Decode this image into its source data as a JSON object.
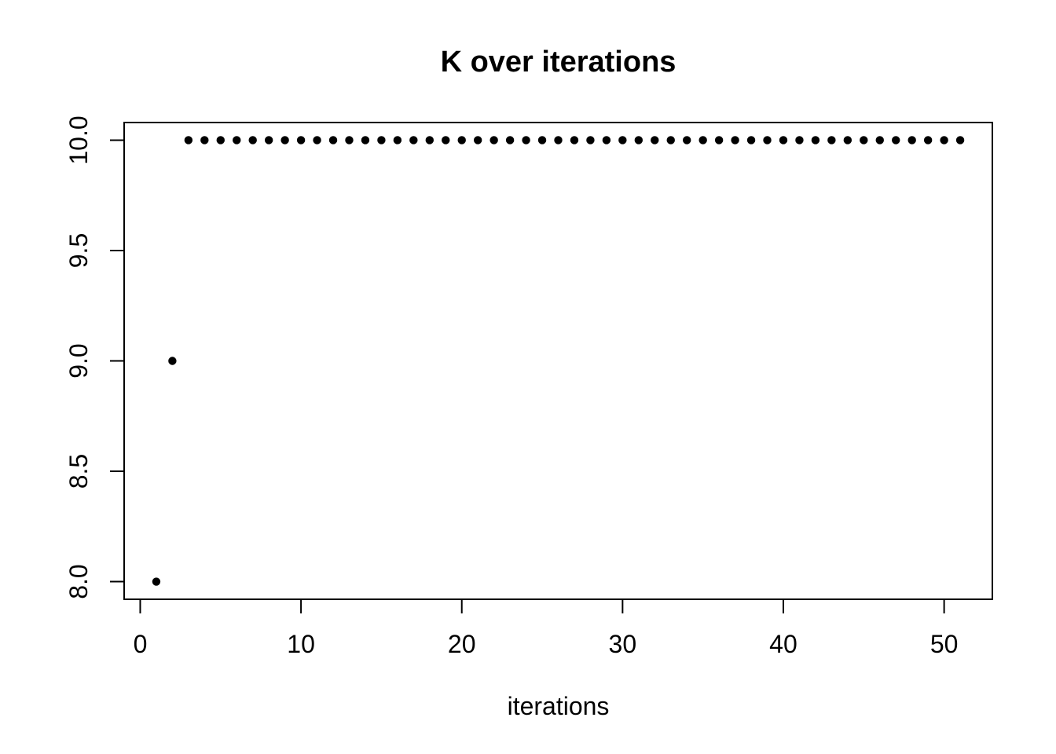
{
  "figure": {
    "background": "#ffffff",
    "axis_color": "#000000",
    "point_color": "#000000"
  },
  "chart_data": {
    "type": "scatter",
    "title": "K over iterations",
    "xlabel": "iterations",
    "ylabel": "",
    "x": [
      1,
      2,
      3,
      4,
      5,
      6,
      7,
      8,
      9,
      10,
      11,
      12,
      13,
      14,
      15,
      16,
      17,
      18,
      19,
      20,
      21,
      22,
      23,
      24,
      25,
      26,
      27,
      28,
      29,
      30,
      31,
      32,
      33,
      34,
      35,
      36,
      37,
      38,
      39,
      40,
      41,
      42,
      43,
      44,
      45,
      46,
      47,
      48,
      49,
      50,
      51
    ],
    "y": [
      8,
      9,
      10,
      10,
      10,
      10,
      10,
      10,
      10,
      10,
      10,
      10,
      10,
      10,
      10,
      10,
      10,
      10,
      10,
      10,
      10,
      10,
      10,
      10,
      10,
      10,
      10,
      10,
      10,
      10,
      10,
      10,
      10,
      10,
      10,
      10,
      10,
      10,
      10,
      10,
      10,
      10,
      10,
      10,
      10,
      10,
      10,
      10,
      10,
      10,
      10
    ],
    "xlim": [
      -1,
      53
    ],
    "ylim": [
      7.92,
      10.08
    ],
    "x_ticks": {
      "values": [
        0,
        10,
        20,
        30,
        40,
        50
      ],
      "labels": [
        "0",
        "10",
        "20",
        "30",
        "40",
        "50"
      ]
    },
    "y_ticks": {
      "values": [
        8.0,
        8.5,
        9.0,
        9.5,
        10.0
      ],
      "labels": [
        "8.0",
        "8.5",
        "9.0",
        "9.5",
        "10.0"
      ]
    },
    "grid": false,
    "legend": "none",
    "marker": "filled-circle",
    "marker_radius_px": 5.2
  }
}
